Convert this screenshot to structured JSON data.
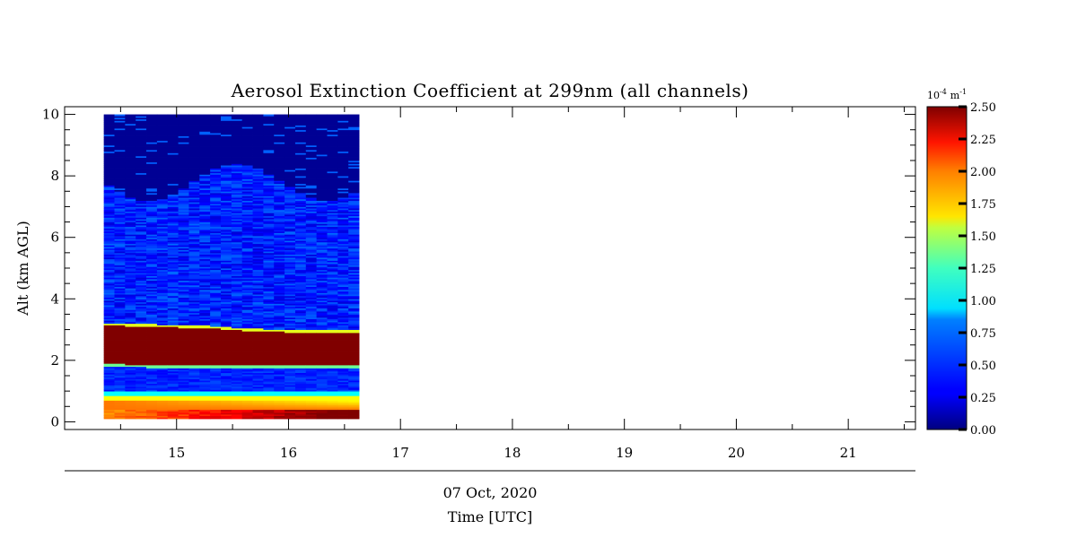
{
  "chart_data": {
    "type": "heatmap",
    "title": "Aerosol Extinction Coefficient at 299nm (all channels)",
    "ylabel": "Alt (km AGL)",
    "xlabel": "Time [UTC]",
    "date_label": "07 Oct, 2020",
    "xlim": [
      14.0,
      21.6
    ],
    "ylim": [
      -0.25,
      10.25
    ],
    "x_ticks": [
      15,
      16,
      17,
      18,
      19,
      20,
      21
    ],
    "y_ticks": [
      0,
      2,
      4,
      6,
      8,
      10
    ],
    "data_time_range": [
      14.35,
      16.63
    ],
    "data_alt_range": [
      0.1,
      10.0
    ],
    "colorbar": {
      "unit_base": "10",
      "unit_exp": "-4",
      "unit_m": "m",
      "unit_m_exp": "-1",
      "range": [
        0.0,
        2.5
      ],
      "ticks": [
        "0.00",
        "0.25",
        "0.50",
        "0.75",
        "1.00",
        "1.25",
        "1.50",
        "1.75",
        "2.00",
        "2.25",
        "2.50"
      ],
      "colormap": "jet"
    },
    "features": [
      {
        "name": "elevated aerosol layer",
        "alt_bottom": [
          1.9,
          1.85,
          1.85,
          1.85,
          1.85,
          1.85
        ],
        "alt_top": [
          3.15,
          3.1,
          3.05,
          2.95,
          2.9,
          2.9
        ],
        "value": 2.5
      },
      {
        "name": "near-surface layer",
        "alt_range": [
          0.1,
          1.0
        ],
        "value_range": [
          1.0,
          2.5
        ]
      },
      {
        "name": "free troposphere",
        "alt_range": [
          3.2,
          7.8
        ],
        "value_range": [
          0.25,
          0.6
        ]
      },
      {
        "name": "clean upper air",
        "alt_range": [
          7.8,
          10.0
        ],
        "value": 0.05
      }
    ]
  }
}
